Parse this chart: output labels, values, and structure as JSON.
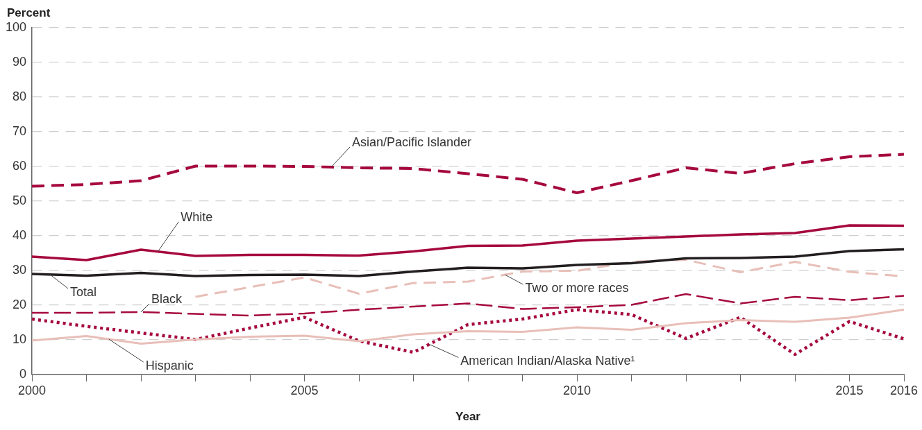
{
  "chart_data": {
    "type": "line",
    "xlabel": "Year",
    "ylabel": "Percent",
    "x": [
      2000,
      2001,
      2002,
      2003,
      2004,
      2005,
      2006,
      2007,
      2008,
      2009,
      2010,
      2011,
      2012,
      2013,
      2014,
      2015,
      2016
    ],
    "xlim": [
      2000,
      2016
    ],
    "xticks": [
      2000,
      {
        "value": 2001,
        "label": null
      },
      {
        "value": 2002,
        "label": null
      },
      {
        "value": 2003,
        "label": null
      },
      {
        "value": 2004,
        "label": null
      },
      2005,
      {
        "value": 2006,
        "label": null
      },
      {
        "value": 2007,
        "label": null
      },
      {
        "value": 2008,
        "label": null
      },
      {
        "value": 2009,
        "label": null
      },
      2010,
      {
        "value": 2011,
        "label": null
      },
      {
        "value": 2012,
        "label": null
      },
      {
        "value": 2013,
        "label": null
      },
      {
        "value": 2014,
        "label": null
      },
      2015,
      2016
    ],
    "ylim": [
      0,
      100
    ],
    "yticks": [
      0,
      10,
      20,
      30,
      40,
      50,
      60,
      70,
      80,
      90,
      100
    ],
    "grid": "y",
    "legend": false,
    "marker": "none",
    "series": [
      {
        "name": "Asian/Pacific Islander",
        "color": "#a6093d",
        "line_style": "dashed",
        "values": [
          54.3,
          54.8,
          55.9,
          60.1,
          60.1,
          60.0,
          59.6,
          59.4,
          57.9,
          56.3,
          52.4,
          55.9,
          59.6,
          58.0,
          60.8,
          62.8,
          63.5
        ]
      },
      {
        "name": "White",
        "color": "#a6093d",
        "line_style": "solid",
        "values": [
          34.0,
          33.0,
          36.0,
          34.2,
          34.5,
          34.5,
          34.3,
          35.5,
          37.1,
          37.2,
          38.6,
          39.2,
          39.8,
          40.4,
          40.8,
          43.0,
          42.9
        ]
      },
      {
        "name": "Total",
        "color": "#231f20",
        "line_style": "solid",
        "values": [
          29.0,
          28.5,
          29.3,
          28.4,
          28.7,
          28.8,
          28.4,
          29.7,
          30.8,
          30.6,
          31.6,
          32.1,
          33.5,
          33.6,
          34.0,
          35.6,
          36.1
        ]
      },
      {
        "name": "Two or more races",
        "color": "#e8bfb8",
        "line_style": "dashed",
        "values": [
          null,
          null,
          null,
          22.4,
          25.2,
          28.0,
          23.3,
          26.4,
          26.8,
          29.7,
          29.9,
          32.5,
          33.1,
          29.5,
          32.5,
          29.6,
          28.3
        ]
      },
      {
        "name": "Black",
        "color": "#a6093d",
        "line_style": "dashed",
        "values": [
          17.8,
          17.8,
          18.0,
          17.5,
          17.0,
          17.6,
          18.7,
          19.6,
          20.5,
          18.9,
          19.4,
          20.1,
          23.2,
          20.5,
          22.4,
          21.4,
          22.7
        ]
      },
      {
        "name": "Hispanic",
        "color": "#e8bfb8",
        "line_style": "solid",
        "values": [
          9.8,
          11.1,
          8.9,
          10.1,
          10.9,
          11.2,
          9.6,
          11.6,
          12.5,
          12.3,
          13.6,
          12.9,
          14.8,
          15.7,
          15.2,
          16.4,
          18.7
        ]
      },
      {
        "name": "American Indian/Alaska Native¹",
        "color": "#a6093d",
        "line_style": "dotted",
        "values": [
          16.0,
          13.9,
          12.0,
          10.1,
          13.4,
          16.5,
          9.7,
          6.4,
          14.4,
          16.0,
          18.7,
          17.3,
          10.4,
          16.5,
          5.8,
          15.3,
          10.3
        ]
      }
    ]
  }
}
